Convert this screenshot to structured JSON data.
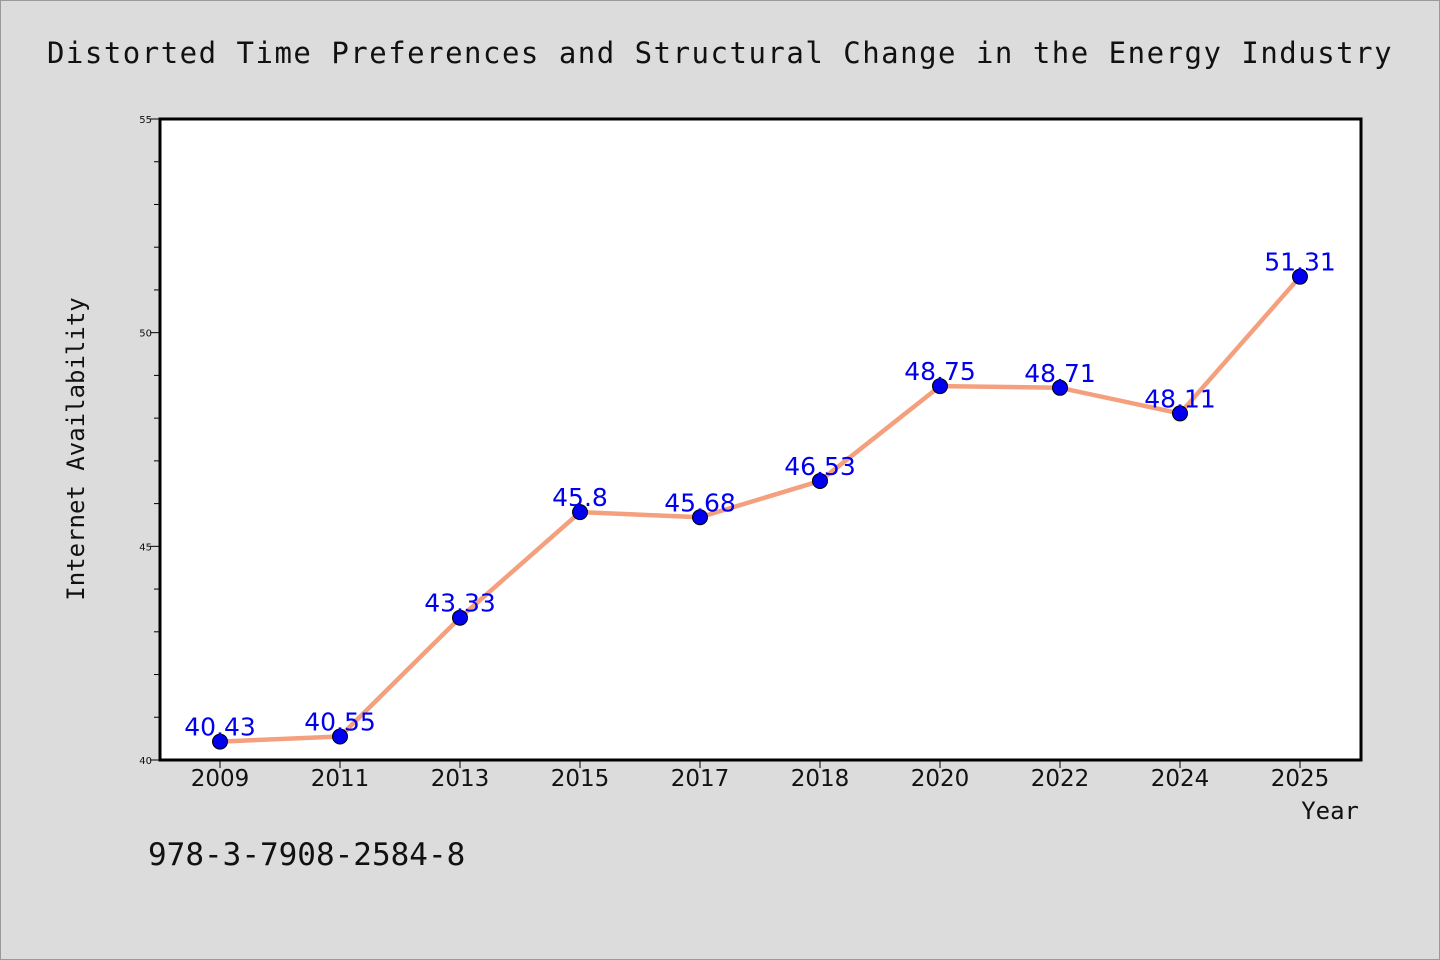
{
  "chart_data": {
    "type": "line",
    "title": "Distorted Time Preferences and Structural Change in the Energy Industry",
    "xlabel": "Year",
    "ylabel": "Internet Availability",
    "categories": [
      "2009",
      "2011",
      "2013",
      "2015",
      "2017",
      "2018",
      "2020",
      "2022",
      "2024",
      "2025"
    ],
    "values": [
      40.43,
      40.55,
      43.33,
      45.8,
      45.68,
      46.53,
      48.75,
      48.71,
      48.11,
      51.31
    ],
    "data_labels": [
      "40.43",
      "40.55",
      "43.33",
      "45.8",
      "45.68",
      "46.53",
      "48.75",
      "48.71",
      "48.11",
      "51.31"
    ],
    "ylim": [
      40,
      55
    ],
    "y_major_ticks": [
      40,
      45,
      50,
      55
    ],
    "y_minor_step": 1,
    "grid": false,
    "line_color": "#f4a07e",
    "marker_color": "#0000ee",
    "label_color": "#0000ee"
  },
  "footer": {
    "isbn": "978-3-7908-2584-8"
  }
}
